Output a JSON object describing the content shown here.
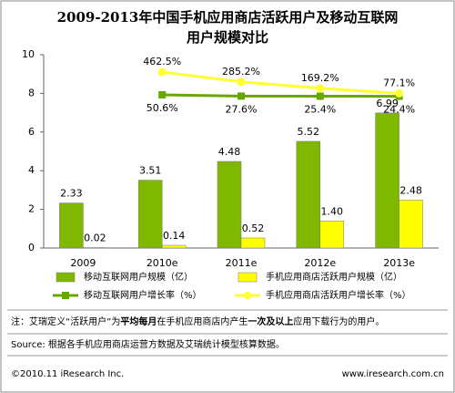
{
  "chart_data": {
    "type": "bar-line",
    "title": [
      "2009-2013年中国手机应用商店活跃用户及移动互联网",
      "用户规模对比"
    ],
    "categories": [
      "2009",
      "2010e",
      "2011e",
      "2012e",
      "2013e"
    ],
    "ylim": [
      0,
      10
    ],
    "yticks": [
      0,
      2,
      4,
      6,
      8,
      10
    ],
    "y2lim": [
      -2720,
      776
    ],
    "legend": "bottom",
    "series": [
      {
        "name": "移动互联网用户规模（亿）",
        "kind": "bar",
        "color": "#80b800",
        "values": [
          2.33,
          3.51,
          4.48,
          5.52,
          6.99
        ],
        "value_labels": [
          "2.33",
          "3.51",
          "4.48",
          "5.52",
          "6.99"
        ]
      },
      {
        "name": "手机应用商店活跃用户规模（亿）",
        "kind": "bar",
        "color": "#ffff00",
        "values": [
          0.02,
          0.14,
          0.52,
          1.4,
          2.48
        ],
        "value_labels": [
          "0.02",
          "0.14",
          "0.52",
          "1.40",
          "2.48"
        ]
      },
      {
        "name": "移动互联网用户增长率（%）",
        "kind": "line",
        "axis": "y2",
        "color": "#66a800",
        "values": [
          null,
          50.6,
          27.6,
          25.4,
          24.4
        ],
        "value_labels": [
          null,
          "50.6%",
          "27.6%",
          "25.4%",
          "24.4%"
        ]
      },
      {
        "name": "手机应用商店活跃用户增长率（%）",
        "kind": "line",
        "axis": "y2",
        "color": "#ffff33",
        "values": [
          null,
          462.5,
          285.2,
          169.2,
          77.1
        ],
        "value_labels": [
          null,
          "462.5%",
          "285.2%",
          "169.2%",
          "77.1%"
        ]
      }
    ]
  },
  "note": [
    "注：艾瑞定义“活跃用户”为",
    "平均每月",
    "在手机应用商店内产生",
    "一次及以上",
    "应用下载行为的用户。"
  ],
  "source": "Source: 根据各手机应用商店运营方数据及艾瑞统计模型核算数据。",
  "footer": {
    "left": "©2010.11 iResearch Inc.",
    "right": "www.iresearch.com.cn"
  }
}
